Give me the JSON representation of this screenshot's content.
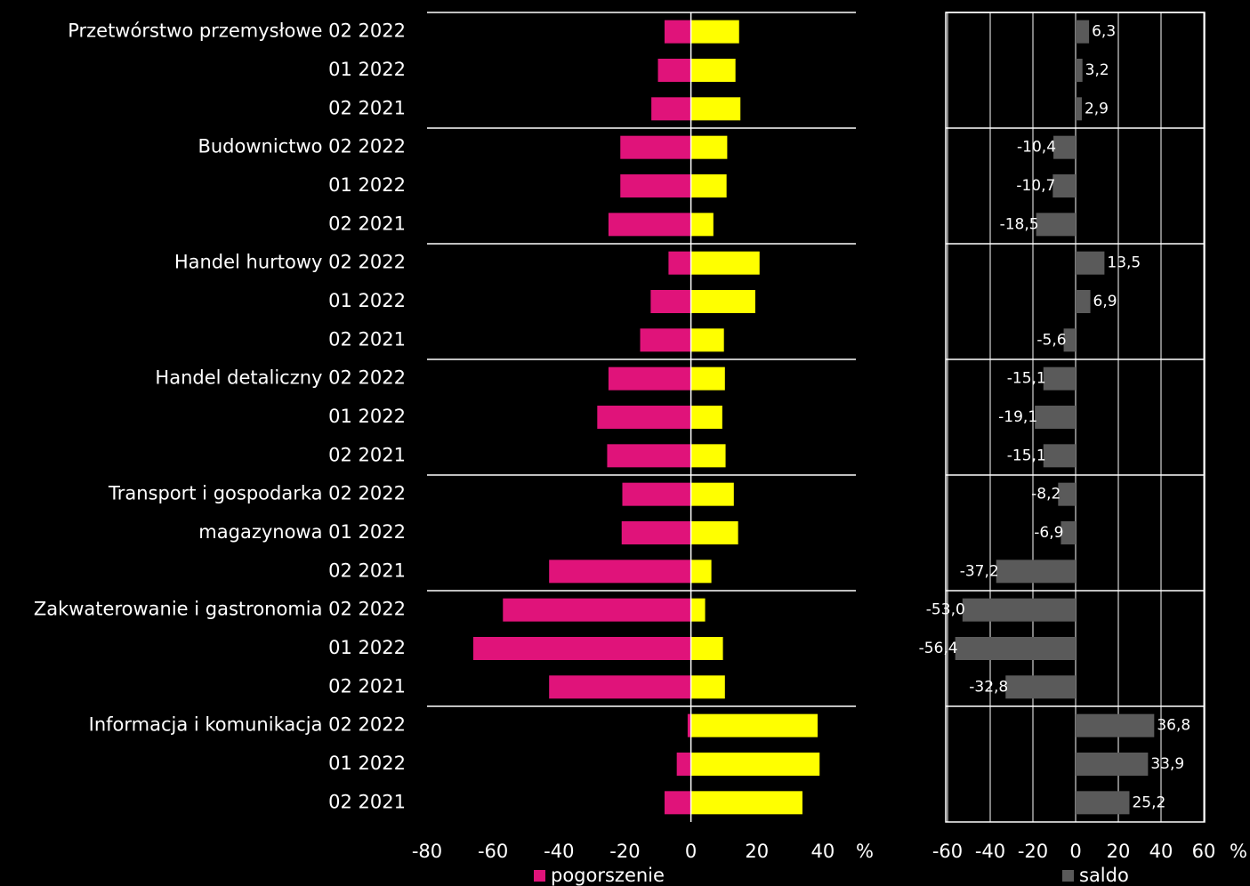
{
  "chart_data": [
    {
      "type": "bar",
      "orientation": "horizontal",
      "categories": [
        "Przetwórstwo przemysłowe 02 2022",
        "01 2022",
        "02 2021",
        "Budownictwo 02 2022",
        "01 2022",
        "02 2021",
        "Handel hurtowy 02 2022",
        "01 2022",
        "02 2021",
        "Handel detaliczny 02 2022",
        "01 2022",
        "02 2021",
        "Transport i gospodarka 02 2022",
        "magazynowa  01 2022",
        "02 2021",
        "Zakwaterowanie i gastronomia 02 2022",
        "01 2022",
        "02 2021",
        "Informacja i komunikacja 02 2022",
        "01 2022",
        "02 2021"
      ],
      "series": [
        {
          "name": "pogorszenie",
          "color": "#e0137a",
          "values": [
            -8,
            -10,
            -12,
            -21.4,
            -21.4,
            -25,
            -6.8,
            -12.2,
            -15.4,
            -25,
            -28.4,
            -25.4,
            -20.8,
            -21,
            -43,
            -57,
            -66,
            -43,
            -1,
            -4.3,
            -8
          ]
        },
        {
          "color": "#ffff00",
          "values": [
            14.6,
            13.5,
            15,
            11,
            10.8,
            6.8,
            20.8,
            19.5,
            10,
            10.3,
            9.5,
            10.5,
            13,
            14.3,
            6.2,
            4.3,
            9.7,
            10.3,
            38.4,
            39,
            33.8
          ]
        }
      ],
      "xlim": [
        -80,
        50
      ],
      "xticks": [
        -80,
        -60,
        -40,
        -20,
        0,
        20,
        40
      ],
      "unit": "%"
    },
    {
      "type": "bar",
      "orientation": "horizontal",
      "series": [
        {
          "name": "saldo",
          "color": "#5a5a5a",
          "values": [
            6.3,
            3.2,
            2.9,
            -10.4,
            -10.7,
            -18.5,
            13.5,
            6.9,
            -5.6,
            -15.1,
            -19.1,
            -15.1,
            -8.2,
            -6.9,
            -37.2,
            -53.0,
            -56.4,
            -32.8,
            36.8,
            33.9,
            25.2
          ],
          "value_labels": [
            "6,3",
            "3,2",
            "2,9",
            "-10,4",
            "-10,7",
            "-18,5",
            "13,5",
            "6,9",
            "-5,6",
            "-15,1",
            "-19,1",
            "-15,1",
            "-8,2",
            "-6,9",
            "-37,2",
            "-53,0",
            "-56,4",
            "-32,8",
            "36,8",
            "33,9",
            "25,2"
          ]
        }
      ],
      "xlim": [
        -60,
        60
      ],
      "xticks": [
        -60,
        -40,
        -20,
        0,
        20,
        40,
        60
      ],
      "unit": "%",
      "grid": true
    }
  ]
}
